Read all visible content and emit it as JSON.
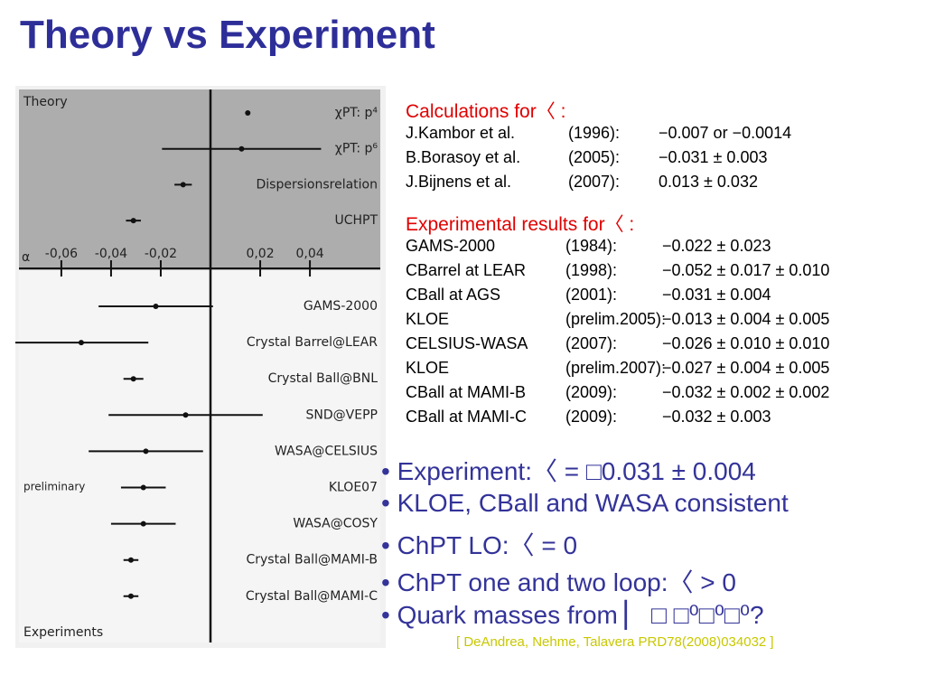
{
  "title": "Theory vs Experiment",
  "plot": {
    "theory_label": "Theory",
    "experiments_label": "Experiments",
    "preliminary_label": "preliminary",
    "axis_label": "α",
    "xlim": [
      -0.0785,
      0.0705
    ],
    "xticks": [
      {
        "value": -0.06,
        "label": "-0,06"
      },
      {
        "value": -0.04,
        "label": "-0,04"
      },
      {
        "value": -0.02,
        "label": "-0,02"
      },
      {
        "value": 0.02,
        "label": "0,02"
      },
      {
        "value": 0.04,
        "label": "0,04"
      }
    ],
    "theory": [
      {
        "name": "χPT: p⁴",
        "value": 0.015
      },
      {
        "name": "χPT: p⁶",
        "value": 0.0125,
        "error": 0.032
      },
      {
        "name": "Dispersionsrelation",
        "value": -0.011,
        "error": 0.0035
      },
      {
        "name": "UCHPT",
        "value": -0.031,
        "error": 0.003
      }
    ],
    "experiments": [
      {
        "name": "GAMS-2000",
        "value": -0.022,
        "error": 0.023
      },
      {
        "name": "Crystal Barrel@LEAR",
        "value": -0.052,
        "error": 0.027
      },
      {
        "name": "Crystal Ball@BNL",
        "value": -0.031,
        "error": 0.004
      },
      {
        "name": "SND@VEPP",
        "value": -0.01,
        "error": 0.031
      },
      {
        "name": "WASA@CELSIUS",
        "value": -0.026,
        "error": 0.023
      },
      {
        "name": "KLOE07",
        "value": -0.027,
        "error": 0.009
      },
      {
        "name": "WASA@COSY",
        "value": -0.027,
        "error": 0.013
      },
      {
        "name": "Crystal Ball@MAMI-B",
        "value": -0.032,
        "error": 0.003
      },
      {
        "name": "Crystal Ball@MAMI-C",
        "value": -0.032,
        "error": 0.003
      }
    ]
  },
  "calculations": {
    "heading": "Calculations for〈 :",
    "rows": [
      [
        "J.Kambor et al.",
        "(1996):",
        "−0.007 or −0.0014"
      ],
      [
        "B.Borasoy et al.",
        "(2005):",
        "−0.031 ± 0.003"
      ],
      [
        "J.Bijnens et al.",
        "(2007):",
        "0.013 ± 0.032"
      ]
    ]
  },
  "experimental": {
    "heading": "Experimental results for〈 :",
    "rows": [
      [
        "GAMS-2000",
        "(1984):",
        "−0.022 ± 0.023"
      ],
      [
        "CBarrel at LEAR",
        "(1998):",
        "−0.052 ± 0.017 ± 0.010"
      ],
      [
        "CBall at AGS",
        "(2001):",
        "−0.031 ± 0.004"
      ],
      [
        "KLOE",
        "(prelim.2005):",
        "−0.013 ± 0.004 ± 0.005"
      ],
      [
        "CELSIUS-WASA",
        "(2007):",
        "−0.026 ± 0.010 ± 0.010"
      ],
      [
        "KLOE",
        "(prelim.2007):",
        "−0.027 ± 0.004 ± 0.005"
      ],
      [
        "CBall at MAMI-B",
        "(2009):",
        "−0.032 ± 0.002 ± 0.002"
      ],
      [
        "CBall at MAMI-C",
        "(2009):",
        "−0.032 ± 0.003"
      ]
    ]
  },
  "bullets": [
    "Experiment:〈 = □0.031 ± 0.004",
    "KLOE, CBall and WASA consistent",
    "ChPT LO:〈 = 0",
    "ChPT one and two loop:〈 > 0",
    "Quark masses from ▏ □ □⁰□⁰□⁰?"
  ],
  "citation": "[ DeAndrea, Nehme, Talavera PRD78(2008)034032 ]"
}
